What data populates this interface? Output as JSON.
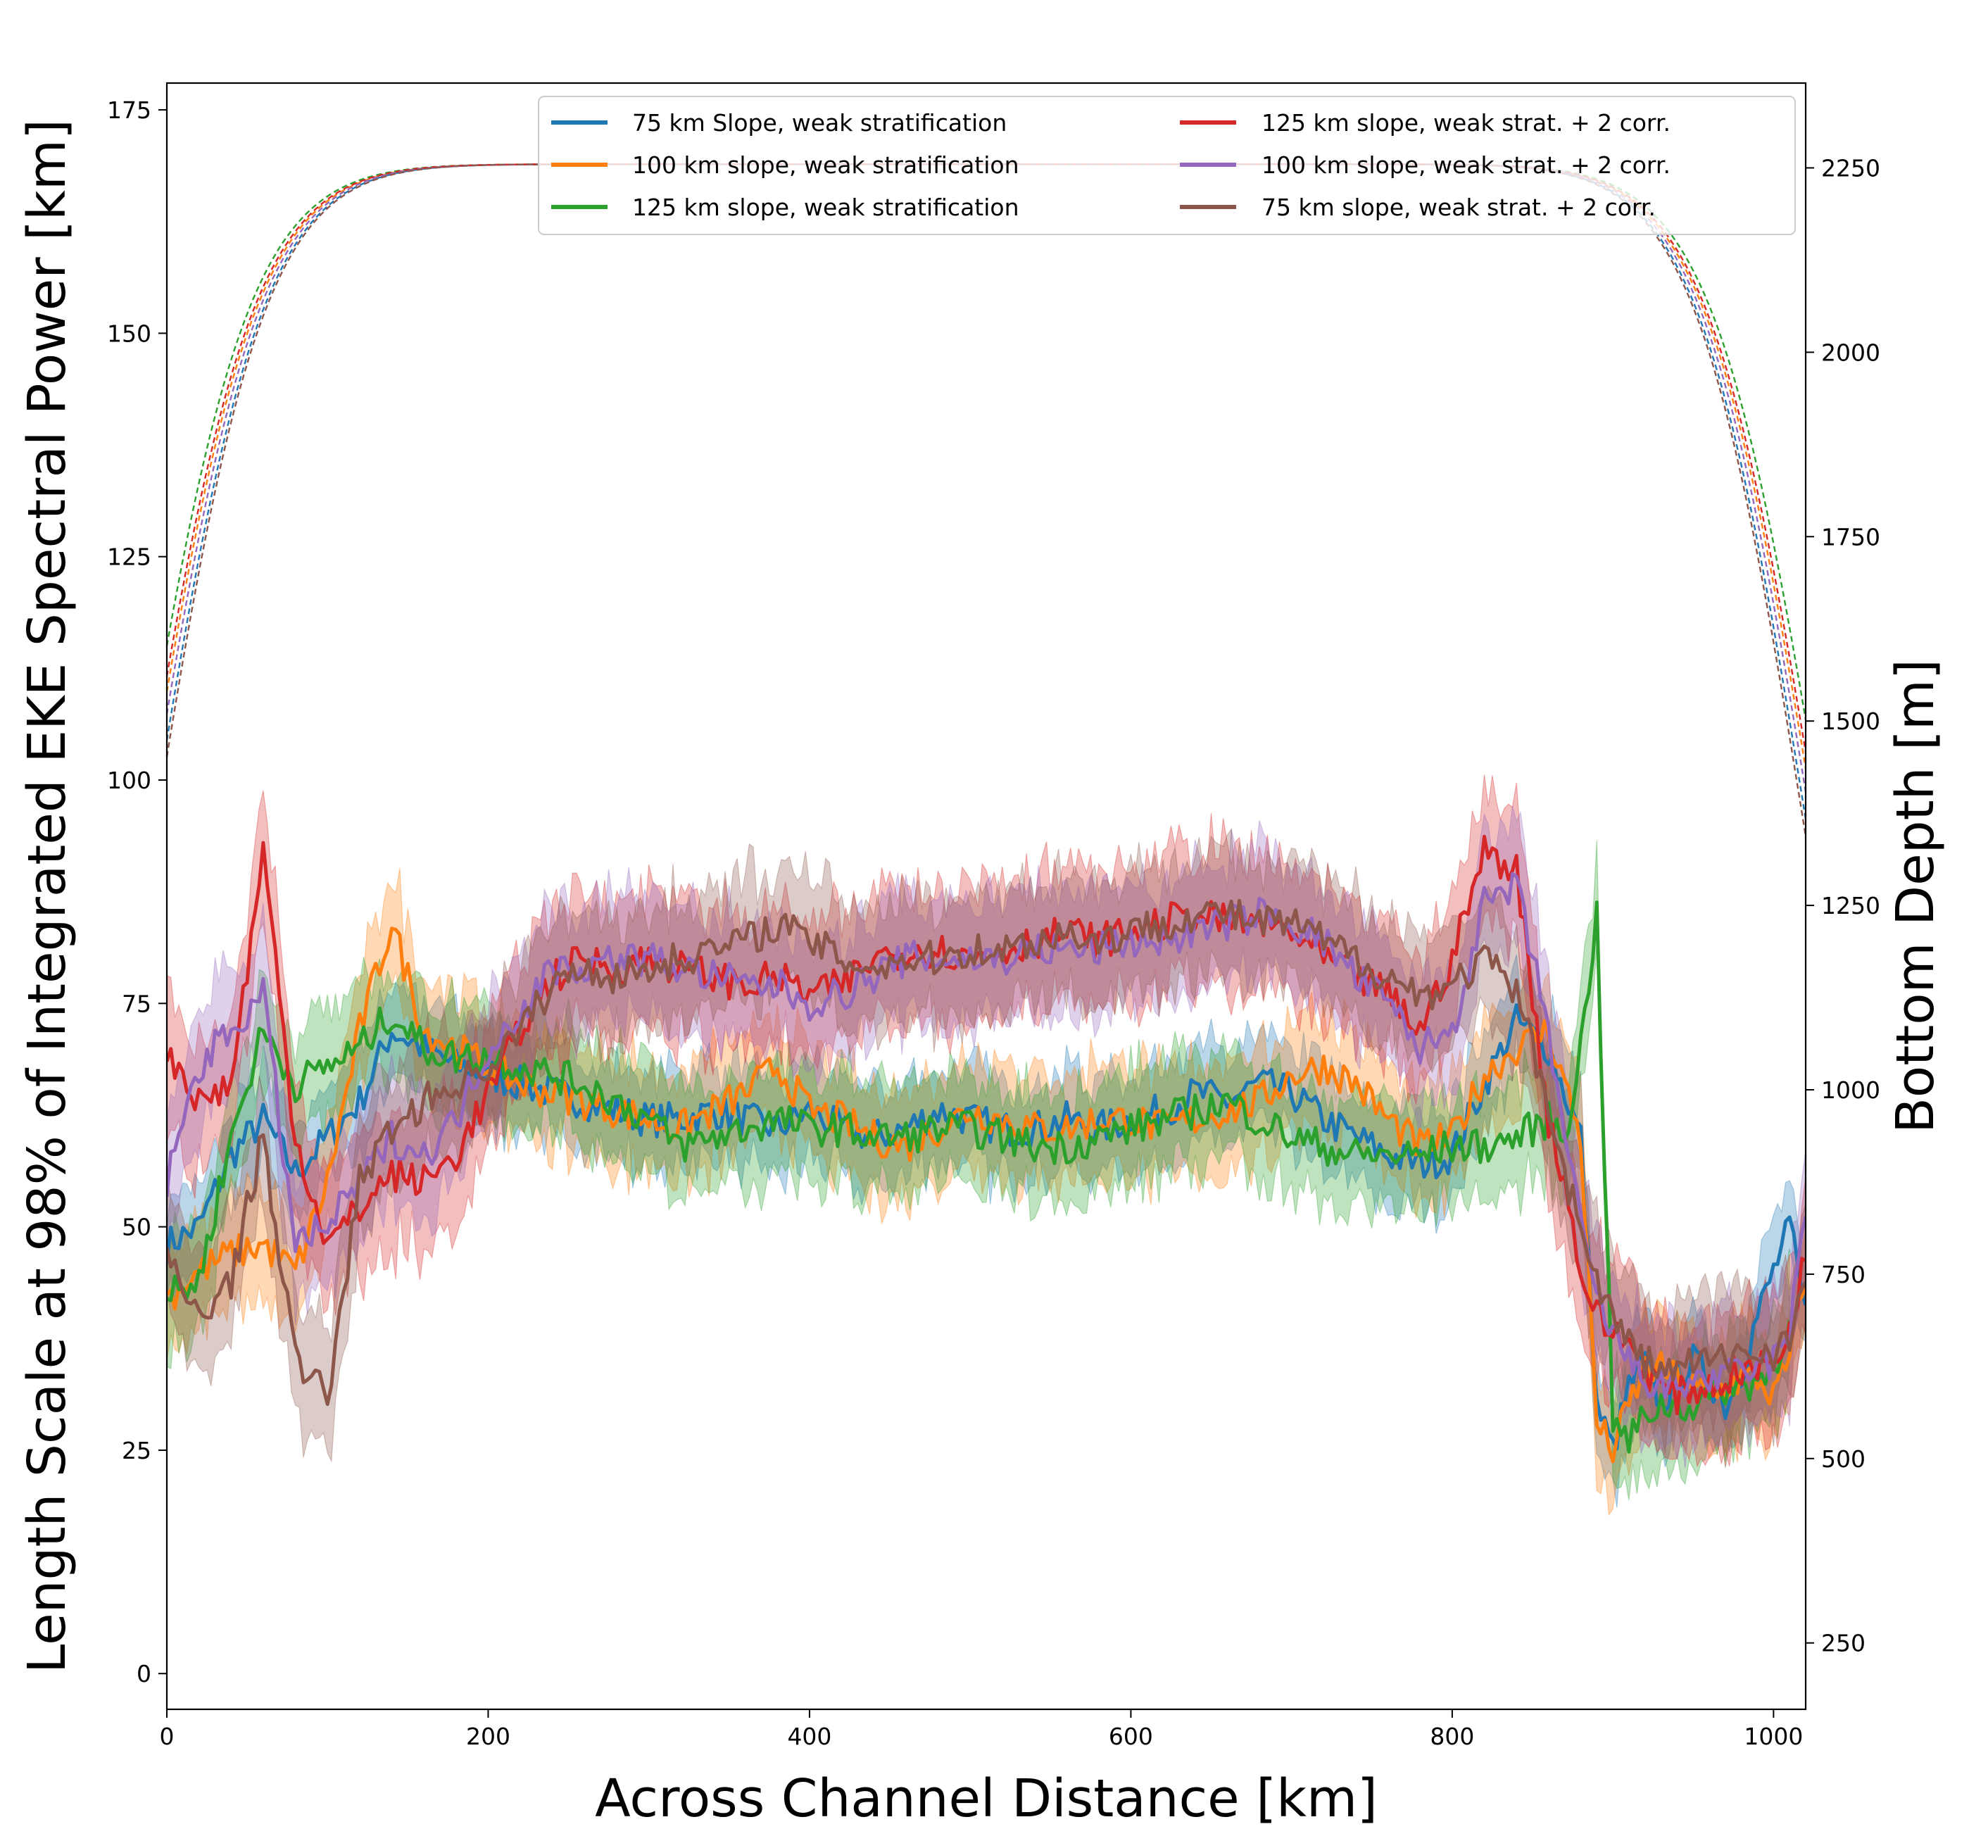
{
  "chart_data": {
    "type": "line",
    "xlabel": "Across Channel Distance [km]",
    "ylabel": "Length Scale at 98% of Integrated EKE Spectral Power [km]",
    "ylabel_right": "Bottom Depth [m]",
    "xlim": [
      0,
      1020
    ],
    "ylim": [
      -4,
      178
    ],
    "ylim_right": [
      160,
      2365
    ],
    "xticks": [
      0,
      200,
      400,
      600,
      800,
      1000
    ],
    "yticks": [
      0,
      25,
      50,
      75,
      100,
      125,
      150,
      175
    ],
    "yticks_right": [
      250,
      500,
      750,
      1000,
      1250,
      1500,
      1750,
      2000,
      2250
    ],
    "legend_position": "top-right",
    "legend_columns": 2,
    "series": [
      {
        "name": "75 km Slope, weak stratification",
        "color": "#1f77b4",
        "x": [
          0,
          20,
          40,
          60,
          80,
          100,
          120,
          140,
          160,
          180,
          200,
          220,
          240,
          260,
          280,
          300,
          320,
          340,
          360,
          380,
          400,
          420,
          440,
          460,
          480,
          500,
          520,
          540,
          560,
          580,
          600,
          620,
          640,
          660,
          680,
          700,
          720,
          740,
          760,
          780,
          800,
          820,
          840,
          860,
          880,
          890,
          900,
          910,
          920,
          930,
          940,
          950,
          960,
          970,
          980,
          990,
          1000,
          1010,
          1020
        ],
        "y": [
          48,
          50,
          58,
          62,
          56,
          60,
          64,
          72,
          70,
          68,
          67,
          66,
          65,
          64,
          63,
          62,
          62,
          63,
          62,
          61,
          63,
          61,
          60,
          61,
          63,
          62,
          61,
          61,
          62,
          61,
          62,
          63,
          65,
          64,
          66,
          65,
          62,
          60,
          58,
          57,
          58,
          66,
          73,
          70,
          60,
          30,
          25,
          32,
          35,
          30,
          33,
          35,
          33,
          30,
          34,
          40,
          45,
          50,
          40
        ],
        "band": 3.5,
        "depth_half_width": 150
      },
      {
        "name": "100 km slope, weak stratification",
        "color": "#ff7f0e",
        "x": [
          0,
          20,
          40,
          60,
          80,
          100,
          120,
          140,
          160,
          180,
          200,
          220,
          240,
          260,
          280,
          300,
          320,
          340,
          360,
          380,
          400,
          420,
          440,
          460,
          480,
          500,
          520,
          540,
          560,
          580,
          600,
          620,
          640,
          660,
          680,
          700,
          720,
          740,
          760,
          780,
          800,
          820,
          840,
          860,
          880,
          890,
          900,
          910,
          920,
          930,
          940,
          950,
          960,
          970,
          980,
          990,
          1000,
          1010,
          1020
        ],
        "y": [
          42,
          45,
          47,
          48,
          45,
          55,
          72,
          84,
          72,
          70,
          68,
          66,
          65,
          64,
          63,
          62,
          61,
          63,
          65,
          68,
          63,
          62,
          60,
          59,
          61,
          63,
          62,
          61,
          61,
          62,
          62,
          61,
          62,
          63,
          64,
          67,
          68,
          66,
          62,
          59,
          60,
          67,
          70,
          72,
          60,
          28,
          25,
          30,
          34,
          34,
          33,
          32,
          31,
          32,
          33,
          33,
          31,
          35,
          45
        ],
        "band": 4.0,
        "depth_half_width": 165
      },
      {
        "name": "125 km slope, weak stratification",
        "color": "#2ca02c",
        "x": [
          0,
          20,
          40,
          60,
          80,
          100,
          120,
          140,
          160,
          180,
          200,
          220,
          240,
          260,
          280,
          300,
          320,
          340,
          360,
          380,
          400,
          420,
          440,
          460,
          480,
          500,
          520,
          540,
          560,
          580,
          600,
          620,
          640,
          660,
          680,
          700,
          720,
          740,
          760,
          780,
          800,
          820,
          840,
          860,
          870,
          880,
          890,
          900,
          910,
          920,
          930,
          940,
          950,
          960,
          970,
          980,
          990,
          1000,
          1010
        ],
        "y": [
          42,
          44,
          60,
          72,
          66,
          68,
          70,
          74,
          70,
          69,
          69,
          68,
          67,
          66,
          64,
          62,
          59,
          60,
          61,
          62,
          61,
          61,
          60,
          60,
          61,
          61,
          60,
          59,
          59,
          60,
          61,
          62,
          63,
          64,
          62,
          60,
          59,
          58,
          58,
          58,
          59,
          59,
          60,
          62,
          60,
          70,
          85,
          28,
          26,
          29,
          30,
          30,
          30,
          31,
          32,
          32,
          33,
          34,
          40
        ],
        "band": 4.0,
        "depth_half_width": 180
      },
      {
        "name": "125 km slope, weak strat. + 2 corr.",
        "color": "#d62728",
        "x": [
          0,
          20,
          40,
          60,
          80,
          100,
          120,
          140,
          160,
          180,
          200,
          220,
          240,
          260,
          280,
          300,
          320,
          340,
          360,
          380,
          400,
          420,
          440,
          460,
          480,
          500,
          520,
          540,
          560,
          580,
          600,
          620,
          640,
          660,
          680,
          700,
          720,
          740,
          760,
          780,
          800,
          820,
          840,
          860,
          870,
          880,
          890,
          900,
          910,
          920,
          930,
          940,
          950,
          960,
          970,
          980,
          990,
          1000,
          1010,
          1020
        ],
        "y": [
          70,
          64,
          66,
          92,
          60,
          48,
          52,
          56,
          55,
          58,
          65,
          72,
          78,
          80,
          79,
          80,
          79,
          78,
          77,
          78,
          76,
          77,
          80,
          81,
          81,
          80,
          81,
          82,
          83,
          82,
          83,
          84,
          85,
          84,
          84,
          83,
          80,
          78,
          76,
          72,
          80,
          92,
          90,
          62,
          55,
          45,
          40,
          38,
          37,
          34,
          32,
          31,
          32,
          32,
          33,
          34,
          34,
          35,
          38,
          48
        ],
        "band": 5.0,
        "depth_half_width": 170
      },
      {
        "name": "100 km slope, weak strat. + 2 corr.",
        "color": "#9467bd",
        "x": [
          0,
          20,
          40,
          60,
          80,
          100,
          120,
          140,
          160,
          180,
          200,
          220,
          240,
          260,
          280,
          300,
          320,
          340,
          360,
          380,
          400,
          420,
          440,
          460,
          480,
          500,
          520,
          540,
          560,
          580,
          600,
          620,
          640,
          660,
          680,
          700,
          720,
          740,
          760,
          780,
          800,
          820,
          840,
          860,
          870,
          880,
          890,
          900,
          910,
          920,
          930,
          940,
          950,
          960,
          970,
          980,
          990,
          1000,
          1010,
          1020
        ],
        "y": [
          55,
          68,
          72,
          76,
          48,
          50,
          55,
          60,
          58,
          62,
          70,
          74,
          79,
          79,
          80,
          80,
          79,
          78,
          77,
          77,
          75,
          76,
          78,
          80,
          80,
          80,
          80,
          81,
          81,
          81,
          82,
          82,
          83,
          84,
          85,
          84,
          82,
          78,
          75,
          70,
          72,
          86,
          88,
          72,
          60,
          50,
          42,
          38,
          35,
          33,
          32,
          32,
          33,
          33,
          33,
          34,
          34,
          35,
          38,
          52
        ],
        "band": 4.5,
        "depth_half_width": 158
      },
      {
        "name": "75 km slope, weak strat. + 2 corr.",
        "color": "#8c564b",
        "x": [
          0,
          20,
          40,
          60,
          80,
          100,
          120,
          140,
          160,
          180,
          200,
          220,
          240,
          260,
          280,
          300,
          320,
          340,
          360,
          380,
          400,
          420,
          440,
          460,
          480,
          500,
          520,
          540,
          560,
          580,
          600,
          620,
          640,
          660,
          680,
          700,
          720,
          740,
          760,
          780,
          800,
          820,
          840,
          860,
          870,
          880,
          890,
          900,
          910,
          920,
          930,
          940,
          950,
          960,
          970,
          980,
          990,
          1000,
          1010,
          1020
        ],
        "y": [
          46,
          40,
          44,
          60,
          35,
          31,
          55,
          61,
          64,
          66,
          68,
          72,
          77,
          79,
          78,
          79,
          80,
          81,
          82,
          84,
          82,
          80,
          79,
          80,
          80,
          81,
          81,
          82,
          83,
          82,
          83,
          84,
          85,
          85,
          84,
          84,
          82,
          80,
          78,
          76,
          77,
          80,
          76,
          64,
          56,
          50,
          44,
          40,
          37,
          35,
          34,
          34,
          35,
          35,
          35,
          36,
          36,
          36,
          38,
          44
        ],
        "band": 4.5,
        "depth_half_width": 145
      }
    ]
  }
}
